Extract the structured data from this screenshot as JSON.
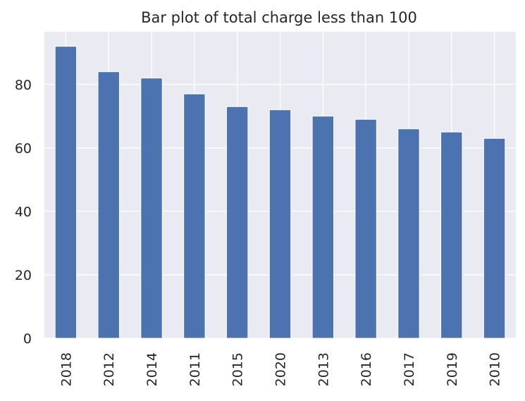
{
  "chart_data": {
    "type": "bar",
    "title": "Bar plot of total charge less than 100",
    "xlabel": "",
    "ylabel": "",
    "categories": [
      "2018",
      "2012",
      "2014",
      "2011",
      "2015",
      "2020",
      "2013",
      "2016",
      "2017",
      "2019",
      "2010"
    ],
    "values": [
      92,
      84,
      82,
      77,
      73,
      72,
      70,
      69,
      66,
      65,
      63
    ],
    "ylim": [
      0,
      96.6
    ],
    "yticks": [
      0,
      20,
      40,
      60,
      80
    ],
    "grid": true,
    "legend": "none",
    "colors": {
      "bar": "#4c72b0",
      "plot_background": "#eaeaf2",
      "grid": "#ffffff",
      "text": "#262626"
    }
  }
}
